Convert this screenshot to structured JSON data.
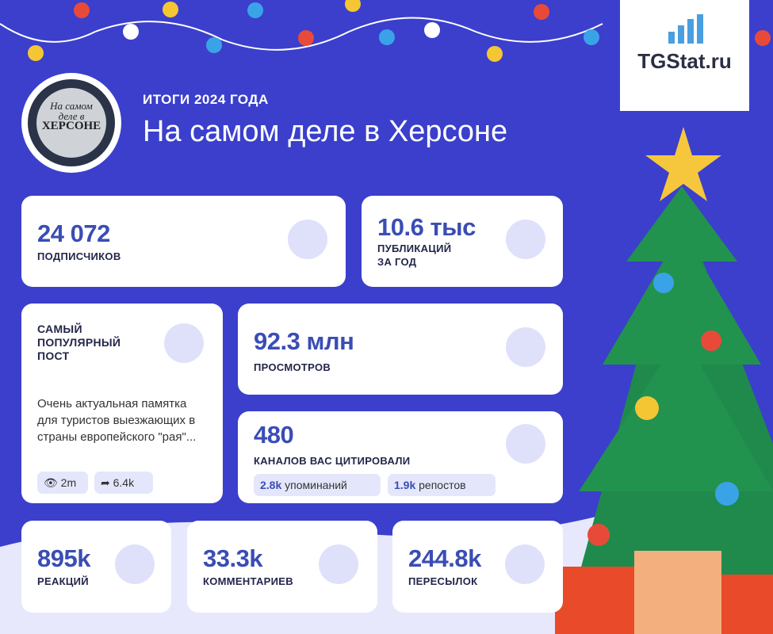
{
  "logo": {
    "text": "TGStat.ru"
  },
  "avatar": {
    "lines": [
      "На самом",
      "деле в",
      "ХЕРСОНЕ"
    ]
  },
  "header": {
    "subtitle": "ИТОГИ 2024 ГОДА",
    "title": "На самом деле в Херсоне"
  },
  "cards": {
    "subscribers": {
      "value": "24 072",
      "label": "ПОДПИСЧИКОВ"
    },
    "posts": {
      "value": "10.6 тыс",
      "label_lines": [
        "ПУБЛИКАЦИЙ",
        "ЗА ГОД"
      ]
    },
    "popular_post": {
      "title_lines": [
        "САМЫЙ",
        "ПОПУЛЯРНЫЙ",
        "ПОСТ"
      ],
      "text": "Очень актуальная памятка для туристов выезжающих в страны европейского \"рая\"...",
      "views": "2m",
      "shares": "6.4k"
    },
    "views": {
      "value": "92.3 млн",
      "label": "ПРОСМОТРОВ"
    },
    "citations": {
      "value": "480",
      "label": "КАНАЛОВ ВАС ЦИТИРОВАЛИ",
      "mentions": {
        "value": "2.8k",
        "label": "упоминаний"
      },
      "reposts": {
        "value": "1.9k",
        "label": "репостов"
      }
    },
    "reactions": {
      "value": "895k",
      "label": "РЕАКЦИЙ"
    },
    "comments": {
      "value": "33.3k",
      "label": "КОММЕНТАРИЕВ"
    },
    "forwards": {
      "value": "244.8k",
      "label": "ПЕРЕСЫЛОК"
    }
  }
}
